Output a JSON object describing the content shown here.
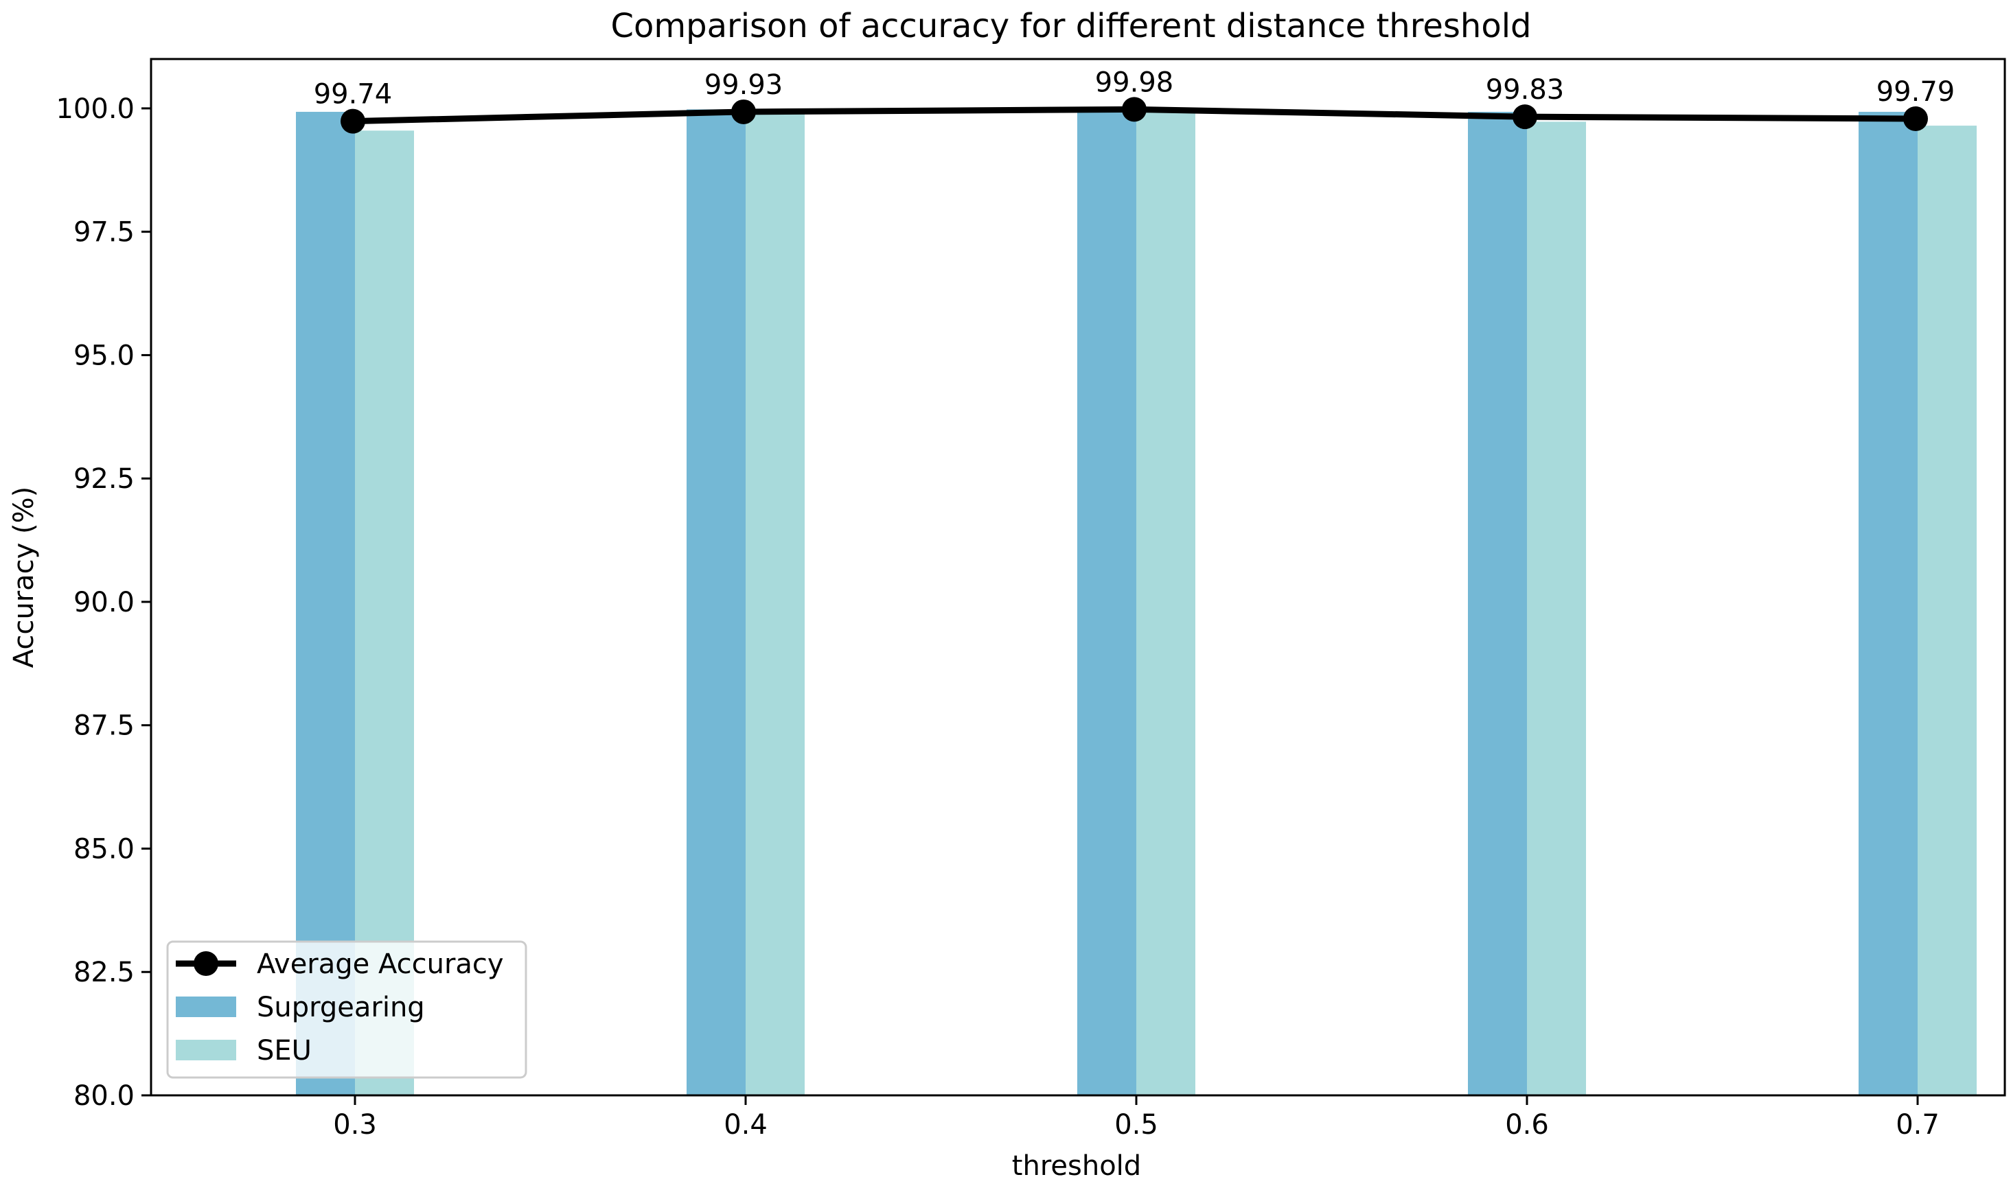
{
  "chart_data": {
    "type": "bar",
    "title": "Comparison of accuracy for different distance threshold",
    "xlabel": "threshold",
    "ylabel": "Accuracy (%)",
    "categories": [
      "0.3",
      "0.4",
      "0.5",
      "0.6",
      "0.7"
    ],
    "ylim": [
      80.0,
      101.0
    ],
    "yticks": [
      "80.0",
      "82.5",
      "85.0",
      "87.5",
      "90.0",
      "92.5",
      "95.0",
      "97.5",
      "100.0"
    ],
    "series": [
      {
        "name": "Suprgearing",
        "type": "bar",
        "color": "#74b8d5",
        "values": [
          99.93,
          99.98,
          100.0,
          99.93,
          99.93
        ]
      },
      {
        "name": "SEU",
        "type": "bar",
        "color": "#a8dadb",
        "values": [
          99.55,
          99.88,
          99.96,
          99.73,
          99.65
        ]
      },
      {
        "name": "Average Accuracy",
        "type": "line",
        "color": "#000000",
        "values": [
          99.74,
          99.93,
          99.98,
          99.83,
          99.79
        ],
        "labels": [
          "99.74",
          "99.93",
          "99.98",
          "99.83",
          "99.79"
        ]
      }
    ],
    "legend": {
      "position": "lower-left",
      "entries": [
        "Average Accuracy",
        "Suprgearing",
        "SEU"
      ]
    },
    "grid": false
  }
}
